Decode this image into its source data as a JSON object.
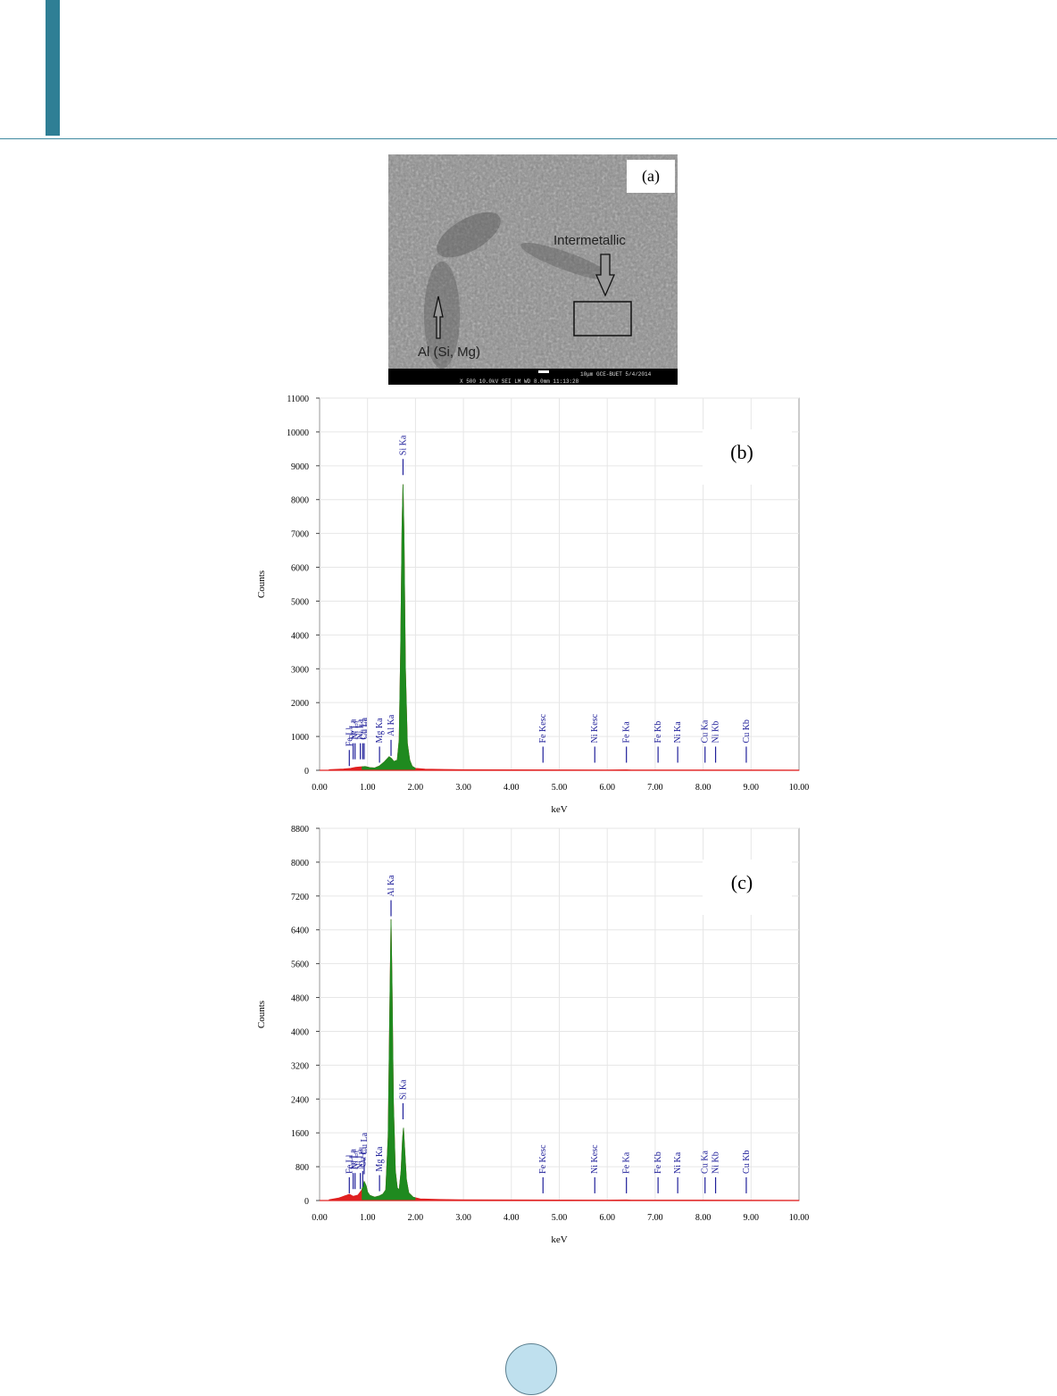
{
  "header": {
    "accent_color": "#2f7f95",
    "rule_color": "#3f8aa0"
  },
  "page_number": "",
  "sem_image": {
    "panel_label": "(a)",
    "annotations": [
      "Intermetallic",
      "Al (Si, Mg)"
    ],
    "scale_bar_text": "10μm   GCE-BUET 5/4/2014",
    "info_bar_text": "X 500     10.0kV SEI     LM     WD 8.0mm  11:13:28"
  },
  "chart_data": [
    {
      "type": "area",
      "panel_label": "(b)",
      "xlabel": "keV",
      "ylabel": "Counts",
      "xlim": [
        0,
        10
      ],
      "ylim": [
        0,
        11000
      ],
      "x_ticks": [
        "0.00",
        "1.00",
        "2.00",
        "3.00",
        "4.00",
        "5.00",
        "6.00",
        "7.00",
        "8.00",
        "9.00",
        "10.00"
      ],
      "y_ticks": [
        "0",
        "1000",
        "2000",
        "3000",
        "4000",
        "5000",
        "6000",
        "7000",
        "8000",
        "9000",
        "10000",
        "11000"
      ],
      "y_tick_values": [
        0,
        1000,
        2000,
        3000,
        4000,
        5000,
        6000,
        7000,
        8000,
        9000,
        10000,
        11000
      ],
      "grid": true,
      "colors": {
        "background": "#e6e6e6",
        "selected_region": "#1f8a1f",
        "spectrum": "#e02020",
        "marker": "#20209a"
      },
      "series": [
        {
          "points": [
            [
              0.2,
              20
            ],
            [
              0.5,
              40
            ],
            [
              0.65,
              60
            ],
            [
              0.75,
              90
            ],
            [
              0.85,
              100
            ],
            [
              0.95,
              110
            ],
            [
              1.05,
              80
            ],
            [
              1.15,
              70
            ],
            [
              1.25,
              130
            ],
            [
              1.35,
              250
            ],
            [
              1.45,
              400
            ],
            [
              1.5,
              350
            ],
            [
              1.55,
              260
            ],
            [
              1.62,
              300
            ],
            [
              1.66,
              900
            ],
            [
              1.69,
              3500
            ],
            [
              1.72,
              7200
            ],
            [
              1.74,
              8450
            ],
            [
              1.76,
              7000
            ],
            [
              1.79,
              3000
            ],
            [
              1.83,
              800
            ],
            [
              1.88,
              300
            ],
            [
              1.93,
              120
            ],
            [
              2.0,
              60
            ],
            [
              2.2,
              35
            ],
            [
              2.6,
              25
            ],
            [
              3.0,
              20
            ],
            [
              4.0,
              15
            ],
            [
              5.0,
              12
            ],
            [
              6.0,
              10
            ],
            [
              6.4,
              15
            ],
            [
              6.5,
              10
            ],
            [
              7.0,
              10
            ],
            [
              8.0,
              10
            ],
            [
              9.0,
              8
            ],
            [
              10.0,
              5
            ]
          ]
        }
      ],
      "peak_markers": [
        {
          "label": "Fe Ll",
          "x": 0.62,
          "height": 600
        },
        {
          "label": "Fe La",
          "x": 0.7,
          "height": 800
        },
        {
          "label": "Ni Ll",
          "x": 0.74,
          "height": 800
        },
        {
          "label": "Ni La",
          "x": 0.85,
          "height": 800
        },
        {
          "label": "Cu Ll",
          "x": 0.9,
          "height": 800
        },
        {
          "label": "Cu La",
          "x": 0.93,
          "height": 800
        },
        {
          "label": "Mg Ka",
          "x": 1.25,
          "height": 700
        },
        {
          "label": "Al Ka",
          "x": 1.49,
          "height": 900
        },
        {
          "label": "Si Ka",
          "x": 1.74,
          "height": 9200
        },
        {
          "label": "Fe Kesc",
          "x": 4.66,
          "height": 700
        },
        {
          "label": "Ni Kesc",
          "x": 5.74,
          "height": 700
        },
        {
          "label": "Fe Ka",
          "x": 6.4,
          "height": 700
        },
        {
          "label": "Fe Kb",
          "x": 7.06,
          "height": 700
        },
        {
          "label": "Ni Ka",
          "x": 7.47,
          "height": 700
        },
        {
          "label": "Cu Ka",
          "x": 8.04,
          "height": 700
        },
        {
          "label": "Ni Kb",
          "x": 8.26,
          "height": 700
        },
        {
          "label": "Cu Kb",
          "x": 8.9,
          "height": 700
        }
      ]
    },
    {
      "type": "area",
      "panel_label": "(c)",
      "xlabel": "keV",
      "ylabel": "Counts",
      "xlim": [
        0,
        10
      ],
      "ylim": [
        0,
        8800
      ],
      "x_ticks": [
        "0.00",
        "1.00",
        "2.00",
        "3.00",
        "4.00",
        "5.00",
        "6.00",
        "7.00",
        "8.00",
        "9.00",
        "10.00"
      ],
      "y_ticks": [
        "0",
        "800",
        "1600",
        "2400",
        "3200",
        "4000",
        "4800",
        "5600",
        "6400",
        "7200",
        "8000",
        "8800"
      ],
      "y_tick_values": [
        0,
        800,
        1600,
        2400,
        3200,
        4000,
        4800,
        5600,
        6400,
        7200,
        8000,
        8800
      ],
      "grid": true,
      "colors": {
        "background": "#e6e6e6",
        "selected_region": "#1f8a1f",
        "spectrum": "#e02020",
        "marker": "#20209a"
      },
      "series": [
        {
          "points": [
            [
              0.2,
              20
            ],
            [
              0.4,
              60
            ],
            [
              0.55,
              120
            ],
            [
              0.62,
              150
            ],
            [
              0.7,
              100
            ],
            [
              0.8,
              130
            ],
            [
              0.88,
              250
            ],
            [
              0.93,
              450
            ],
            [
              0.97,
              350
            ],
            [
              1.0,
              200
            ],
            [
              1.05,
              120
            ],
            [
              1.15,
              80
            ],
            [
              1.25,
              110
            ],
            [
              1.32,
              150
            ],
            [
              1.38,
              250
            ],
            [
              1.43,
              1500
            ],
            [
              1.46,
              4200
            ],
            [
              1.49,
              6650
            ],
            [
              1.51,
              5200
            ],
            [
              1.54,
              2300
            ],
            [
              1.58,
              700
            ],
            [
              1.62,
              300
            ],
            [
              1.66,
              250
            ],
            [
              1.7,
              700
            ],
            [
              1.73,
              1450
            ],
            [
              1.75,
              1720
            ],
            [
              1.77,
              1300
            ],
            [
              1.81,
              500
            ],
            [
              1.86,
              180
            ],
            [
              1.95,
              80
            ],
            [
              2.1,
              40
            ],
            [
              2.5,
              25
            ],
            [
              3.0,
              18
            ],
            [
              4.0,
              15
            ],
            [
              5.0,
              12
            ],
            [
              6.0,
              10
            ],
            [
              6.4,
              15
            ],
            [
              6.5,
              10
            ],
            [
              7.0,
              10
            ],
            [
              8.0,
              10
            ],
            [
              9.0,
              8
            ],
            [
              10.0,
              5
            ]
          ]
        }
      ],
      "peak_markers": [
        {
          "label": "Fe Ll",
          "x": 0.62,
          "height": 550
        },
        {
          "label": "Fe La",
          "x": 0.7,
          "height": 650
        },
        {
          "label": "Ni Ll",
          "x": 0.74,
          "height": 650
        },
        {
          "label": "Ni La",
          "x": 0.85,
          "height": 650
        },
        {
          "label": "Cu Ll",
          "x": 0.9,
          "height": 700
        },
        {
          "label": "Cu La",
          "x": 0.93,
          "height": 1000
        },
        {
          "label": "Mg Ka",
          "x": 1.25,
          "height": 600
        },
        {
          "label": "Al Ka",
          "x": 1.49,
          "height": 7100
        },
        {
          "label": "Si Ka",
          "x": 1.74,
          "height": 2300
        },
        {
          "label": "Fe Kesc",
          "x": 4.66,
          "height": 550
        },
        {
          "label": "Ni Kesc",
          "x": 5.74,
          "height": 550
        },
        {
          "label": "Fe Ka",
          "x": 6.4,
          "height": 550
        },
        {
          "label": "Fe Kb",
          "x": 7.06,
          "height": 550
        },
        {
          "label": "Ni Ka",
          "x": 7.47,
          "height": 550
        },
        {
          "label": "Cu Ka",
          "x": 8.04,
          "height": 550
        },
        {
          "label": "Ni Kb",
          "x": 8.26,
          "height": 550
        },
        {
          "label": "Cu Kb",
          "x": 8.9,
          "height": 550
        }
      ]
    }
  ]
}
